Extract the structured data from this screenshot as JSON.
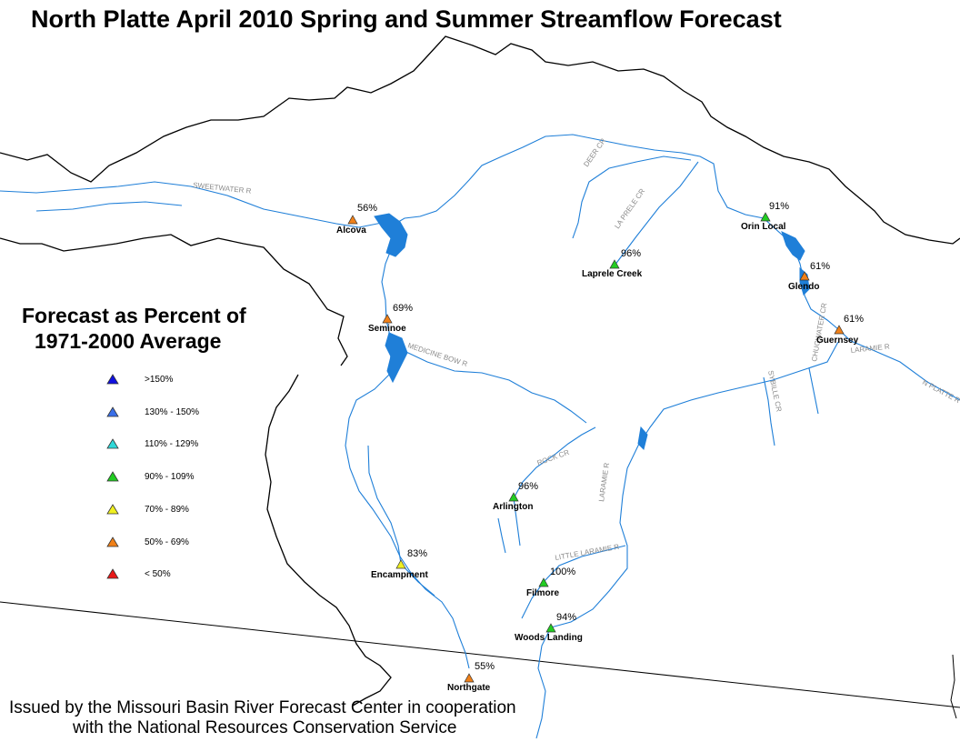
{
  "title": "North Platte April 2010 Spring and Summer Streamflow Forecast",
  "legend": {
    "title_line1": "Forecast as Percent of",
    "title_line2": "1971-2000 Average",
    "items": [
      {
        "label": ">150%",
        "color": "#1010e0"
      },
      {
        "label": "130% - 150%",
        "color": "#3a6fe8"
      },
      {
        "label": "110% - 129%",
        "color": "#30d8d8"
      },
      {
        "label": "90% - 109%",
        "color": "#22cc22"
      },
      {
        "label": "70% - 89%",
        "color": "#f0f020"
      },
      {
        "label": "50% - 69%",
        "color": "#f08018"
      },
      {
        "label": "< 50%",
        "color": "#e81818"
      }
    ]
  },
  "gauges": [
    {
      "name": "Alcova",
      "percent": "56%",
      "color": "#f08018"
    },
    {
      "name": "Seminoe",
      "percent": "69%",
      "color": "#f08018"
    },
    {
      "name": "Laprele Creek",
      "percent": "96%",
      "color": "#22cc22"
    },
    {
      "name": "Orin Local",
      "percent": "91%",
      "color": "#22cc22"
    },
    {
      "name": "Glendo",
      "percent": "61%",
      "color": "#f08018"
    },
    {
      "name": "Guernsey",
      "percent": "61%",
      "color": "#f08018"
    },
    {
      "name": "Arlington",
      "percent": "96%",
      "color": "#22cc22"
    },
    {
      "name": "Encampment",
      "percent": "83%",
      "color": "#f0f020"
    },
    {
      "name": "Filmore",
      "percent": "100%",
      "color": "#22cc22"
    },
    {
      "name": "Woods Landing",
      "percent": "94%",
      "color": "#22cc22"
    },
    {
      "name": "Northgate",
      "percent": "55%",
      "color": "#f08018"
    }
  ],
  "river_labels": [
    "SWEETWATER R",
    "DEER CR",
    "LA PRELE CR",
    "MEDICINE BOW R",
    "ROCK CR",
    "LARAMIE R",
    "LITTLE LARAMIE R",
    "SYBILLE CR",
    "CHUGWATER CR",
    "N PLATTE R"
  ],
  "footer": {
    "line1": "Issued by the Missouri Basin River Forecast Center in cooperation",
    "line2": "with the National Resources Conservation Service"
  },
  "colors": {
    "river": "#1f7fd8",
    "boundary": "#000000"
  }
}
